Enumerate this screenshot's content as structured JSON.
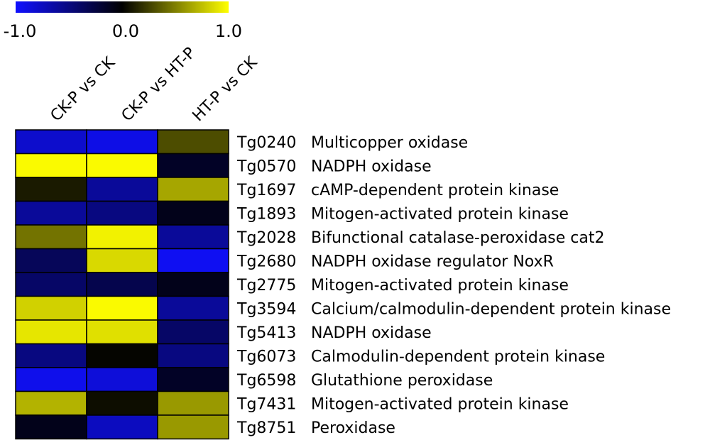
{
  "chart_data": {
    "type": "heatmap",
    "colorbar": {
      "min": -1.0,
      "max": 1.0,
      "tick_labels": [
        "-1.0",
        "0.0",
        "1.0"
      ],
      "colors": {
        "low": "#1010ff",
        "mid": "#000000",
        "high": "#ffff00"
      }
    },
    "columns": [
      "CK-P vs CK",
      "CK-P vs HT-P",
      "HT-P vs CK"
    ],
    "rows": [
      {
        "id": "Tg0240",
        "name": "Multicopper oxidase",
        "values": [
          -0.8,
          -0.9,
          0.3
        ]
      },
      {
        "id": "Tg0570",
        "name": "NADPH oxidase",
        "values": [
          0.98,
          0.98,
          -0.15
        ]
      },
      {
        "id": "Tg1697",
        "name": "cAMP-dependent protein kinase",
        "values": [
          0.1,
          -0.6,
          0.65
        ]
      },
      {
        "id": "Tg1893",
        "name": "Mitogen-activated protein kinase",
        "values": [
          -0.6,
          -0.5,
          -0.1
        ]
      },
      {
        "id": "Tg2028",
        "name": "Bifunctional catalase-peroxidase cat2",
        "values": [
          0.45,
          0.95,
          -0.6
        ]
      },
      {
        "id": "Tg2680",
        "name": "NADPH oxidase regulator NoxR",
        "values": [
          -0.35,
          0.85,
          -0.95
        ]
      },
      {
        "id": "Tg2775",
        "name": "Mitogen-activated protein kinase",
        "values": [
          -0.4,
          -0.3,
          -0.1
        ]
      },
      {
        "id": "Tg3594",
        "name": "Calcium/calmodulin-dependent protein kinase",
        "values": [
          0.82,
          0.98,
          -0.6
        ]
      },
      {
        "id": "Tg5413",
        "name": "NADPH oxidase",
        "values": [
          0.9,
          0.88,
          -0.4
        ]
      },
      {
        "id": "Tg6073",
        "name": "Calmodulin-dependent protein kinase",
        "values": [
          -0.5,
          0.02,
          -0.5
        ]
      },
      {
        "id": "Tg6598",
        "name": "Glutathione peroxidase",
        "values": [
          -0.92,
          -0.85,
          -0.15
        ]
      },
      {
        "id": "Tg7431",
        "name": "Mitogen-activated protein kinase",
        "values": [
          0.7,
          0.05,
          0.6
        ]
      },
      {
        "id": "Tg8751",
        "name": "Peroxidase",
        "values": [
          -0.1,
          -0.75,
          0.6
        ]
      }
    ]
  }
}
